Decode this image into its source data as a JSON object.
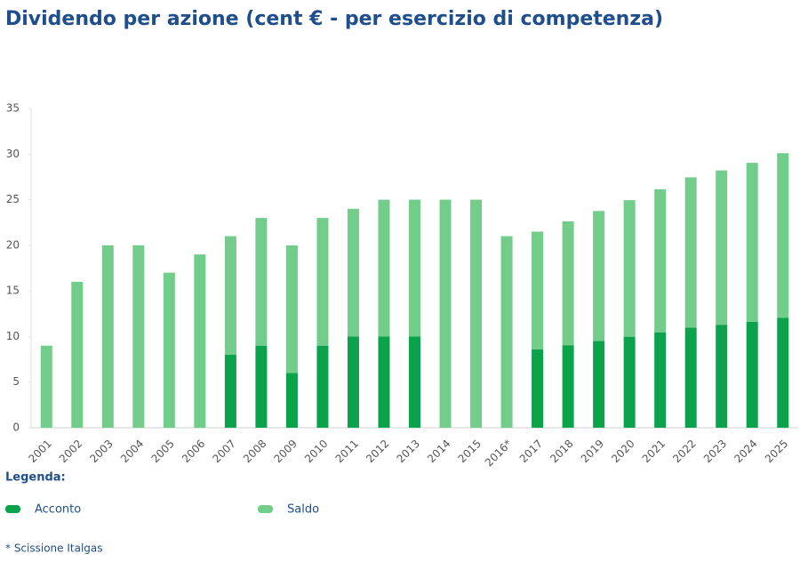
{
  "chart_data": {
    "type": "stacked_bar",
    "title": "Dividendo per azione (cent € - per esercizio di competenza)",
    "categories": [
      "2001",
      "2002",
      "2003",
      "2004",
      "2005",
      "2006",
      "2007",
      "2008",
      "2009",
      "2010",
      "2011",
      "2012",
      "2013",
      "2014",
      "2015",
      "2016*",
      "2017",
      "2018",
      "2019",
      "2020",
      "2021",
      "2022",
      "2023",
      "2024",
      "2025"
    ],
    "series": [
      {
        "name": "Acconto",
        "color": "#0aa24b",
        "values": [
          0,
          0,
          0,
          0,
          0,
          0,
          8,
          9,
          6,
          9,
          10,
          10,
          10,
          0,
          0,
          0,
          8.6,
          9.05,
          9.52,
          9.98,
          10.46,
          10.98,
          11.29,
          11.62,
          12.04
        ]
      },
      {
        "name": "Saldo",
        "color": "#72cc8a",
        "values": [
          9,
          16,
          20,
          20,
          17,
          19,
          13,
          14,
          14,
          14,
          14,
          15,
          15,
          25,
          25,
          21,
          12.9,
          13.58,
          14.24,
          14.97,
          15.69,
          16.47,
          16.92,
          17.42,
          18.06
        ]
      }
    ],
    "ylim": [
      0,
      35
    ],
    "yticks": [
      0,
      5,
      10,
      15,
      20,
      25,
      30,
      35
    ],
    "legend_title": "Legenda:",
    "footnote": "* Scissione Italgas"
  }
}
